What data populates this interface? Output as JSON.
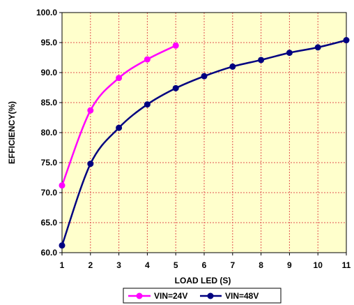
{
  "chart_data": {
    "type": "line",
    "title": "",
    "xlabel": "LOAD LED (S)",
    "ylabel": "EFFICIENCY(%)",
    "xlim": [
      1,
      11
    ],
    "ylim": [
      60,
      100
    ],
    "x_ticks": [
      "1",
      "2",
      "3",
      "4",
      "5",
      "6",
      "7",
      "8",
      "9",
      "10",
      "11"
    ],
    "y_ticks": [
      "60.0",
      "65.0",
      "70.0",
      "75.0",
      "80.0",
      "85.0",
      "90.0",
      "95.0",
      "100.0"
    ],
    "grid": true,
    "legend_position": "bottom",
    "plot_background": "#ffffcc",
    "series": [
      {
        "name": "VIN=24V",
        "color": "#ff00ff",
        "x": [
          1,
          2,
          3,
          4,
          5
        ],
        "y": [
          71.2,
          83.7,
          89.1,
          92.2,
          94.5
        ]
      },
      {
        "name": "VIN=48V",
        "color": "#000080",
        "x": [
          1,
          2,
          3,
          4,
          5,
          6,
          7,
          8,
          9,
          10,
          11
        ],
        "y": [
          61.2,
          74.8,
          80.8,
          84.7,
          87.4,
          89.4,
          91.0,
          92.1,
          93.3,
          94.2,
          95.4
        ]
      }
    ]
  }
}
